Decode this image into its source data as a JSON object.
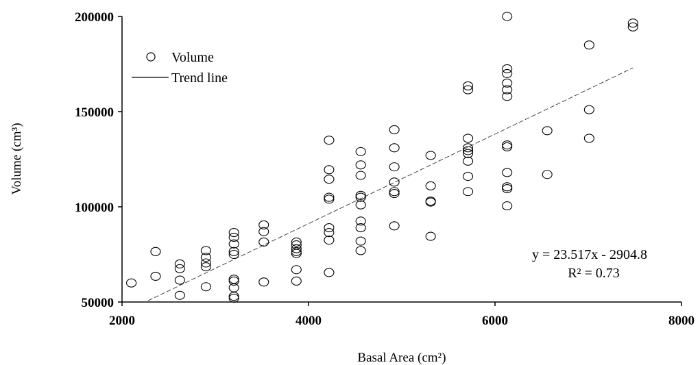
{
  "chart_data": {
    "type": "scatter",
    "title": "",
    "xlabel": "Basal Area (cm²)",
    "ylabel": "Volume (cm³)",
    "xlim": [
      2000,
      8000
    ],
    "ylim": [
      50000,
      200000
    ],
    "x_ticks": [
      "2000",
      "4000",
      "6000",
      "8000"
    ],
    "y_ticks": [
      "50000",
      "100000",
      "150000",
      "200000"
    ],
    "grid": false,
    "legend_position": "top-left",
    "legend": [
      {
        "label": "Volume",
        "marker": "open-circle"
      },
      {
        "label": "Trend line",
        "marker": "line"
      }
    ],
    "series": [
      {
        "name": "Volume",
        "kind": "scatter",
        "points": [
          [
            2100,
            60000
          ],
          [
            2360,
            76500
          ],
          [
            2360,
            63500
          ],
          [
            2620,
            70000
          ],
          [
            2620,
            67500
          ],
          [
            2620,
            61500
          ],
          [
            2620,
            53500
          ],
          [
            2900,
            77000
          ],
          [
            2900,
            73500
          ],
          [
            2900,
            70500
          ],
          [
            2900,
            68500
          ],
          [
            2900,
            58000
          ],
          [
            3200,
            86500
          ],
          [
            3200,
            84000
          ],
          [
            3200,
            80500
          ],
          [
            3200,
            76500
          ],
          [
            3200,
            75000
          ],
          [
            3200,
            62000
          ],
          [
            3200,
            61000
          ],
          [
            3200,
            57500
          ],
          [
            3200,
            53000
          ],
          [
            3200,
            52000
          ],
          [
            3520,
            90500
          ],
          [
            3520,
            87000
          ],
          [
            3520,
            81500
          ],
          [
            3520,
            60500
          ],
          [
            3870,
            81500
          ],
          [
            3870,
            80000
          ],
          [
            3870,
            78000
          ],
          [
            3870,
            76500
          ],
          [
            3870,
            75500
          ],
          [
            3870,
            67000
          ],
          [
            3870,
            61000
          ],
          [
            4220,
            135000
          ],
          [
            4220,
            119500
          ],
          [
            4220,
            114500
          ],
          [
            4220,
            105000
          ],
          [
            4220,
            104000
          ],
          [
            4220,
            89000
          ],
          [
            4220,
            86500
          ],
          [
            4220,
            82500
          ],
          [
            4220,
            65500
          ],
          [
            4560,
            129000
          ],
          [
            4560,
            122000
          ],
          [
            4560,
            116500
          ],
          [
            4560,
            106000
          ],
          [
            4560,
            105000
          ],
          [
            4560,
            101000
          ],
          [
            4560,
            92500
          ],
          [
            4560,
            89000
          ],
          [
            4560,
            82000
          ],
          [
            4560,
            77000
          ],
          [
            4920,
            140500
          ],
          [
            4920,
            131000
          ],
          [
            4920,
            121000
          ],
          [
            4920,
            113000
          ],
          [
            4920,
            108000
          ],
          [
            4920,
            107000
          ],
          [
            4920,
            90000
          ],
          [
            5310,
            127000
          ],
          [
            5310,
            111000
          ],
          [
            5310,
            103000
          ],
          [
            5310,
            102500
          ],
          [
            5310,
            84500
          ],
          [
            5710,
            163500
          ],
          [
            5710,
            161500
          ],
          [
            5710,
            136000
          ],
          [
            5710,
            131000
          ],
          [
            5710,
            129500
          ],
          [
            5710,
            128000
          ],
          [
            5710,
            124000
          ],
          [
            5710,
            116000
          ],
          [
            5710,
            108000
          ],
          [
            6130,
            200000
          ],
          [
            6130,
            172500
          ],
          [
            6130,
            170000
          ],
          [
            6130,
            165000
          ],
          [
            6130,
            161500
          ],
          [
            6130,
            158000
          ],
          [
            6130,
            132500
          ],
          [
            6130,
            131500
          ],
          [
            6130,
            118000
          ],
          [
            6130,
            110500
          ],
          [
            6130,
            109500
          ],
          [
            6130,
            100500
          ],
          [
            6560,
            140000
          ],
          [
            6560,
            117000
          ],
          [
            7010,
            185000
          ],
          [
            7010,
            151000
          ],
          [
            7010,
            136000
          ],
          [
            7480,
            196500
          ],
          [
            7480,
            194500
          ]
        ]
      },
      {
        "name": "Trend line",
        "kind": "line",
        "style": "dashed",
        "points": [
          [
            2280,
            50716
          ],
          [
            7480,
            173002
          ]
        ]
      }
    ],
    "annotations": {
      "equation": "y = 23.517x - 2904.8",
      "r_squared": "R² = 0.73"
    }
  }
}
